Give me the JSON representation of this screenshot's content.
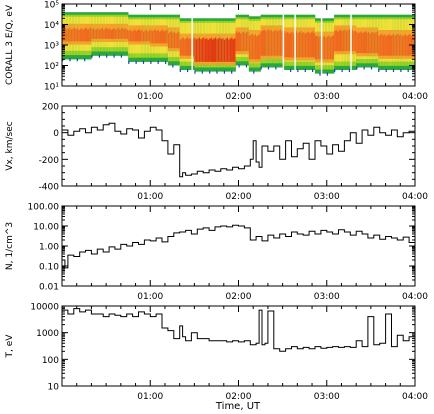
{
  "x_axis_label": "Time, UT",
  "chart_data": [
    {
      "type": "heatmap",
      "ylabel": "CORALL 3  E/Q, eV",
      "yscale": "log",
      "ylim": [
        10,
        100000
      ],
      "ytick_labels": [
        "10⁵",
        "10⁴",
        "10³",
        "10²",
        "10¹"
      ],
      "ytick_values": [
        100000,
        10000,
        1000,
        100,
        10
      ],
      "xtick_labels": [
        "01:00",
        "02:00",
        "03:00",
        "04:00"
      ],
      "xtick_values": [
        60,
        120,
        180,
        240
      ],
      "xlim": [
        0,
        240
      ],
      "colors": [
        "#1a3bd6",
        "#2aa83a",
        "#9ad42a",
        "#f2e03a",
        "#f3a12c",
        "#ef6a1f",
        "#e23a14"
      ],
      "bands": [
        {
          "t": [
            0,
            20
          ],
          "lo": 200,
          "hi": 40000,
          "core_lo": 1500,
          "core_hi": 6000,
          "peak": 0.7
        },
        {
          "t": [
            20,
            45
          ],
          "lo": 300,
          "hi": 40000,
          "core_lo": 2000,
          "core_hi": 6000,
          "peak": 0.75
        },
        {
          "t": [
            45,
            60
          ],
          "lo": 150,
          "hi": 30000,
          "core_lo": 1500,
          "core_hi": 5000,
          "peak": 0.6
        },
        {
          "t": [
            60,
            72
          ],
          "lo": 150,
          "hi": 30000,
          "core_lo": 1200,
          "core_hi": 5000,
          "peak": 0.55
        },
        {
          "t": [
            72,
            80
          ],
          "lo": 100,
          "hi": 30000,
          "core_lo": 700,
          "core_hi": 4000,
          "peak": 0.75
        },
        {
          "t": [
            80,
            90
          ],
          "lo": 60,
          "hi": 20000,
          "core_lo": 300,
          "core_hi": 2000,
          "peak": 0.65
        },
        {
          "t": [
            90,
            118
          ],
          "lo": 50,
          "hi": 20000,
          "core_lo": 150,
          "core_hi": 2000,
          "peak": 0.95
        },
        {
          "t": [
            118,
            127
          ],
          "lo": 100,
          "hi": 30000,
          "core_lo": 500,
          "core_hi": 4000,
          "peak": 0.7
        },
        {
          "t": [
            127,
            135
          ],
          "lo": 50,
          "hi": 25000,
          "core_lo": 200,
          "core_hi": 3000,
          "peak": 0.8
        },
        {
          "t": [
            135,
            150
          ],
          "lo": 80,
          "hi": 30000,
          "core_lo": 300,
          "core_hi": 5000,
          "peak": 0.7
        },
        {
          "t": [
            150,
            172
          ],
          "lo": 60,
          "hi": 30000,
          "core_lo": 250,
          "core_hi": 4000,
          "peak": 0.75
        },
        {
          "t": [
            172,
            185
          ],
          "lo": 40,
          "hi": 20000,
          "core_lo": 200,
          "core_hi": 2500,
          "peak": 0.7
        },
        {
          "t": [
            185,
            200
          ],
          "lo": 60,
          "hi": 30000,
          "core_lo": 500,
          "core_hi": 5000,
          "peak": 0.6
        },
        {
          "t": [
            200,
            215
          ],
          "lo": 80,
          "hi": 30000,
          "core_lo": 400,
          "core_hi": 4000,
          "peak": 0.65
        },
        {
          "t": [
            215,
            240
          ],
          "lo": 60,
          "hi": 30000,
          "core_lo": 300,
          "core_hi": 3000,
          "peak": 0.7
        }
      ]
    },
    {
      "type": "line",
      "ylabel": "Vx, km/sec",
      "ylim": [
        -400,
        200
      ],
      "ytick_values": [
        200,
        0,
        -200,
        -400
      ],
      "ytick_labels": [
        "200",
        "0",
        "-200",
        "-400"
      ],
      "xtick_labels": [
        "01:00",
        "02:00",
        "03:00",
        "04:00"
      ],
      "xtick_values": [
        60,
        120,
        180,
        240
      ],
      "xlim": [
        0,
        240
      ],
      "step": true,
      "x": [
        0,
        4,
        8,
        12,
        16,
        20,
        24,
        28,
        32,
        36,
        40,
        44,
        48,
        52,
        56,
        60,
        64,
        68,
        72,
        76,
        80,
        82,
        84,
        88,
        92,
        96,
        100,
        104,
        108,
        112,
        116,
        120,
        124,
        128,
        130,
        132,
        134,
        136,
        140,
        144,
        148,
        152,
        156,
        160,
        164,
        168,
        172,
        176,
        180,
        184,
        188,
        192,
        196,
        200,
        204,
        208,
        212,
        216,
        220,
        224,
        228,
        232,
        236,
        240
      ],
      "y": [
        20,
        -20,
        10,
        30,
        0,
        40,
        20,
        60,
        70,
        10,
        -10,
        30,
        20,
        -40,
        10,
        40,
        20,
        -60,
        -160,
        -90,
        -330,
        -300,
        -320,
        -310,
        -290,
        -300,
        -280,
        -290,
        -270,
        -280,
        -260,
        -270,
        -250,
        -200,
        -60,
        -220,
        -260,
        -100,
        -140,
        -100,
        -200,
        -60,
        -180,
        -120,
        -80,
        -200,
        -60,
        -100,
        -160,
        -90,
        -140,
        -60,
        0,
        -80,
        20,
        -20,
        40,
        0,
        -20,
        20,
        -30,
        0,
        10,
        30
      ]
    },
    {
      "type": "line",
      "ylabel": "N, 1/cm^3",
      "yscale": "log",
      "ylim": [
        0.01,
        100
      ],
      "ytick_values": [
        100,
        10,
        1,
        0.1,
        0.01
      ],
      "ytick_labels": [
        "100.00",
        "10.00",
        "1.00",
        "0.10",
        "0.01"
      ],
      "xtick_labels": [
        "01:00",
        "02:00",
        "03:00",
        "04:00"
      ],
      "xtick_values": [
        60,
        120,
        180,
        240
      ],
      "xlim": [
        0,
        240
      ],
      "step": true,
      "x": [
        0,
        2,
        4,
        8,
        12,
        16,
        20,
        24,
        28,
        32,
        36,
        40,
        44,
        48,
        52,
        56,
        60,
        64,
        68,
        72,
        76,
        80,
        84,
        88,
        92,
        96,
        100,
        104,
        108,
        112,
        116,
        120,
        124,
        128,
        132,
        136,
        140,
        144,
        148,
        152,
        156,
        160,
        164,
        168,
        172,
        176,
        180,
        184,
        188,
        192,
        196,
        200,
        204,
        208,
        212,
        216,
        220,
        224,
        228,
        232,
        236,
        240
      ],
      "y": [
        0.2,
        0.08,
        0.35,
        0.3,
        0.5,
        0.6,
        0.4,
        0.7,
        0.5,
        0.9,
        0.7,
        1.2,
        1.0,
        1.5,
        1.2,
        2.0,
        1.8,
        2.5,
        1.6,
        3.0,
        4.5,
        5.0,
        6.0,
        4.0,
        7.0,
        8.0,
        6.0,
        9.0,
        10.0,
        9.0,
        11.0,
        10.0,
        8.0,
        2.0,
        3.0,
        1.8,
        3.5,
        2.5,
        4.0,
        3.0,
        5.0,
        4.0,
        3.5,
        5.5,
        4.0,
        6.0,
        5.0,
        4.0,
        6.5,
        5.0,
        3.5,
        5.5,
        4.0,
        2.5,
        3.5,
        2.2,
        3.0,
        2.5,
        2.0,
        2.8,
        1.5,
        2.0
      ]
    },
    {
      "type": "line",
      "ylabel": "T, eV",
      "yscale": "log",
      "ylim": [
        10,
        10000
      ],
      "ytick_values": [
        10000,
        1000,
        100,
        10
      ],
      "ytick_labels": [
        "10000",
        "1000",
        "100",
        "10"
      ],
      "xtick_labels": [
        "01:00",
        "02:00",
        "03:00",
        "04:00"
      ],
      "xtick_values": [
        60,
        120,
        180,
        240
      ],
      "xlim": [
        0,
        240
      ],
      "step": true,
      "x": [
        0,
        4,
        8,
        12,
        16,
        20,
        24,
        28,
        32,
        36,
        40,
        44,
        48,
        52,
        56,
        60,
        64,
        68,
        72,
        76,
        80,
        82,
        84,
        88,
        92,
        96,
        100,
        104,
        108,
        112,
        116,
        120,
        124,
        128,
        132,
        134,
        136,
        138,
        140,
        144,
        148,
        152,
        156,
        160,
        164,
        168,
        172,
        176,
        180,
        184,
        188,
        192,
        196,
        200,
        204,
        208,
        212,
        216,
        220,
        224,
        228,
        232,
        236,
        240
      ],
      "y": [
        7000,
        5000,
        8000,
        6000,
        7000,
        5000,
        5000,
        4000,
        5000,
        4500,
        4000,
        5000,
        4000,
        6000,
        5000,
        4000,
        5000,
        1500,
        1200,
        600,
        1800,
        700,
        500,
        1000,
        600,
        600,
        500,
        500,
        500,
        450,
        500,
        450,
        500,
        350,
        400,
        7000,
        350,
        400,
        6500,
        250,
        200,
        250,
        300,
        250,
        280,
        250,
        300,
        260,
        280,
        300,
        280,
        300,
        280,
        500,
        300,
        4000,
        350,
        400,
        5000,
        300,
        800,
        500,
        700,
        700
      ]
    }
  ]
}
